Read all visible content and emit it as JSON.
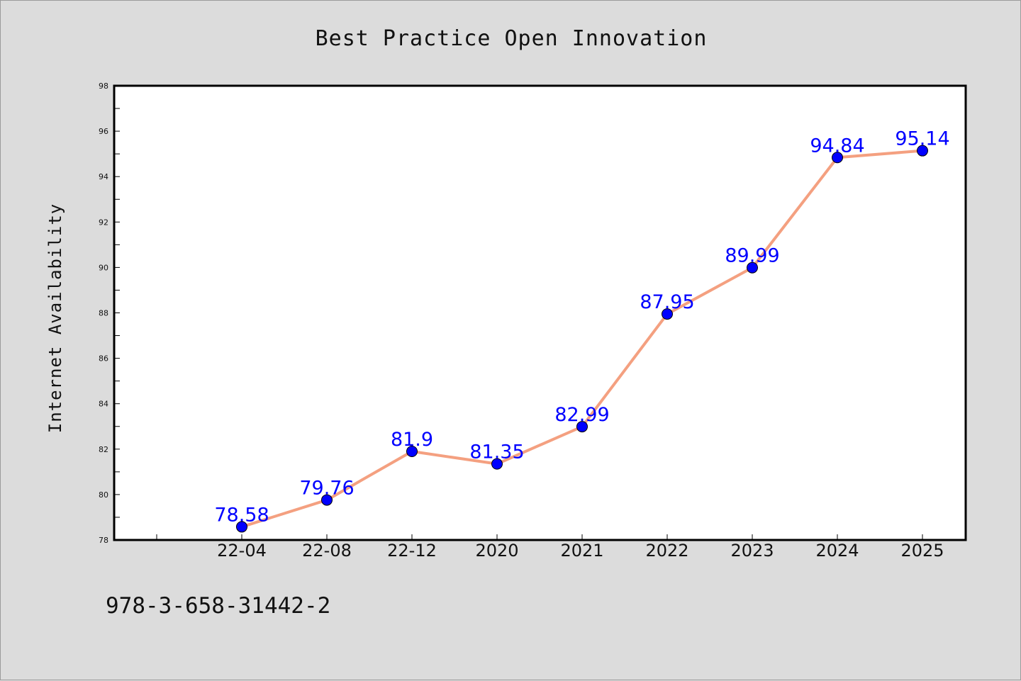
{
  "chart_data": {
    "type": "line",
    "title": "Best Practice Open Innovation",
    "xlabel": "",
    "ylabel": "Internet Availability",
    "categories": [
      "22-04",
      "22-08",
      "22-12",
      "2020",
      "2021",
      "2022",
      "2023",
      "2024",
      "2025"
    ],
    "series": [
      {
        "values": [
          78.58,
          79.76,
          81.9,
          81.35,
          82.99,
          87.95,
          89.99,
          94.84,
          95.14
        ],
        "labels": [
          "78.58",
          "79.76",
          "81.9",
          "81.35",
          "82.99",
          "87.95",
          "89.99",
          "94.84",
          "95.14"
        ]
      }
    ],
    "ylim": [
      78,
      98
    ],
    "yticks": [
      "78",
      "80",
      "82",
      "84",
      "86",
      "88",
      "90",
      "92",
      "94",
      "96",
      "98"
    ],
    "grid": false,
    "legend": "none",
    "colors": {
      "line": "#f4a080",
      "marker": "#0000ff",
      "data_label": "#0000ff",
      "background": "#dcdcdc",
      "plot_area": "#ffffff"
    }
  },
  "footer": {
    "isbn": "978-3-658-31442-2"
  }
}
